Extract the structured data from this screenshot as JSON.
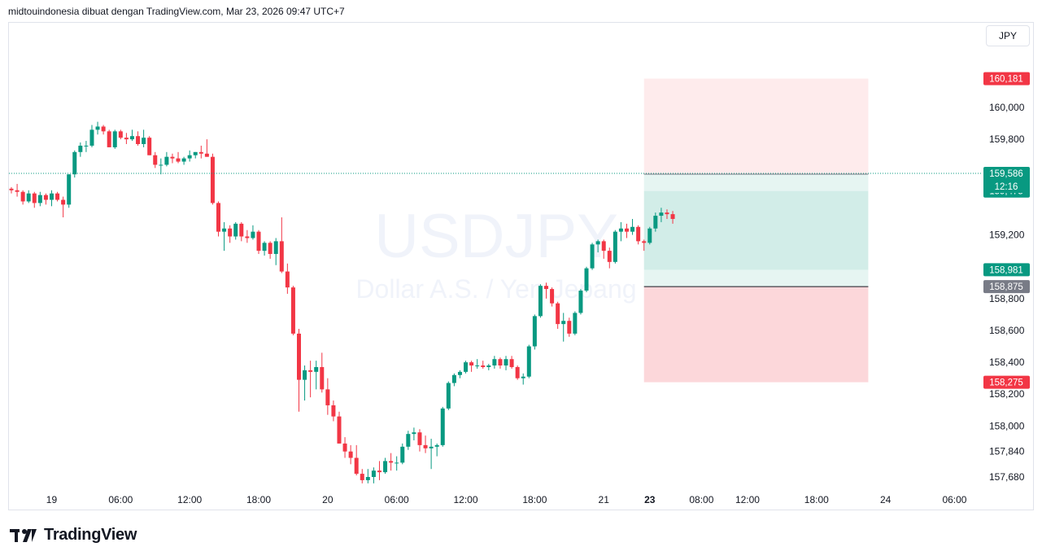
{
  "header": {
    "text": "midtouindonesia dibuat dengan TradingView.com, Mar 23, 2026 09:47 UTC+7"
  },
  "currency_badge": "JPY",
  "footer": {
    "brand": "TradingView"
  },
  "colors": {
    "up": "#089981",
    "down": "#f23645",
    "grid": "#e0e3eb",
    "text": "#131722",
    "watermark": "#f0f3fa",
    "profit_zone": "rgba(8,153,129,0.18)",
    "profit_zone_light": "rgba(8,153,129,0.10)",
    "loss_zone": "rgba(242,54,69,0.20)",
    "loss_zone_light": "rgba(242,54,69,0.10)",
    "price_line": "#089981",
    "entry_gray": "#787b86"
  },
  "chart_data": {
    "type": "candlestick",
    "symbol_watermark": "USDJPY",
    "subtitle_watermark": "Dollar A.S. / Yen Jepang",
    "y_range": [
      157580,
      160390
    ],
    "y_ticks": [
      "160,000",
      "159,800",
      "159,200",
      "158,800",
      "158,600",
      "158,400",
      "158,200",
      "158,000",
      "157,840",
      "157,680"
    ],
    "y_tick_values": [
      160000,
      159800,
      159200,
      158800,
      158600,
      158400,
      158200,
      158000,
      157840,
      157680
    ],
    "x_ticks": [
      "19",
      "06:00",
      "12:00",
      "18:00",
      "20",
      "06:00",
      "12:00",
      "18:00",
      "21",
      "23",
      "08:00",
      "12:00",
      "18:00",
      "24",
      "06:00"
    ],
    "x_tick_bold": [
      false,
      false,
      false,
      false,
      false,
      false,
      false,
      false,
      false,
      true,
      false,
      false,
      false,
      false,
      false
    ],
    "x_tick_bar_index": [
      7,
      19,
      31,
      43,
      55,
      67,
      79,
      91,
      103,
      111,
      120,
      128,
      140,
      152,
      164
    ],
    "x_tick_time": [
      "19",
      "06:00",
      "12:00",
      "18:00",
      "20",
      "06:00",
      "12:00",
      "18:00",
      "21",
      "23",
      "08:00",
      "12:00",
      "18:00",
      "24",
      "06:00"
    ],
    "bar_interval": "30m",
    "current_price": {
      "value": 159586,
      "label": "159,586",
      "countdown": "12:16"
    },
    "position": {
      "type": "long",
      "start_bar": 110,
      "end_bar": 149,
      "take_profit": {
        "value": 160181,
        "label": "160,181"
      },
      "entry": {
        "value": 159581,
        "label": "159,581"
      },
      "stop_loss": {
        "value": 158875,
        "label": "158,875"
      },
      "stop_loss_far": {
        "value": 158275,
        "label": "158,275"
      },
      "tp_near": {
        "value": 158981,
        "label": "158,981"
      },
      "level_475": {
        "value": 159475,
        "label": "159,475"
      }
    },
    "candles": [
      [
        159490,
        159500,
        159460,
        159480
      ],
      [
        159480,
        159520,
        159440,
        159470
      ],
      [
        159470,
        159480,
        159390,
        159410
      ],
      [
        159410,
        159480,
        159400,
        159460
      ],
      [
        159460,
        159470,
        159370,
        159400
      ],
      [
        159400,
        159470,
        159380,
        159450
      ],
      [
        159450,
        159460,
        159390,
        159420
      ],
      [
        159420,
        159480,
        159380,
        159460
      ],
      [
        159460,
        159470,
        159410,
        159420
      ],
      [
        159420,
        159440,
        159310,
        159390
      ],
      [
        159390,
        159580,
        159370,
        159580
      ],
      [
        159580,
        159730,
        159560,
        159720
      ],
      [
        159720,
        159780,
        159690,
        159760
      ],
      [
        159760,
        159790,
        159720,
        159760
      ],
      [
        159760,
        159890,
        159750,
        159860
      ],
      [
        159860,
        159910,
        159830,
        159880
      ],
      [
        159880,
        159890,
        159830,
        159850
      ],
      [
        159850,
        159860,
        159750,
        159750
      ],
      [
        159750,
        159860,
        159740,
        159850
      ],
      [
        159850,
        159860,
        159800,
        159810
      ],
      [
        159810,
        159840,
        159770,
        159800
      ],
      [
        159800,
        159860,
        159790,
        159820
      ],
      [
        159820,
        159850,
        159760,
        159770
      ],
      [
        159770,
        159860,
        159750,
        159810
      ],
      [
        159810,
        159820,
        159700,
        159700
      ],
      [
        159700,
        159720,
        159620,
        159640
      ],
      [
        159640,
        159680,
        159580,
        159640
      ],
      [
        159640,
        159720,
        159630,
        159690
      ],
      [
        159690,
        159710,
        159650,
        159680
      ],
      [
        159680,
        159720,
        159650,
        159660
      ],
      [
        159660,
        159690,
        159640,
        159680
      ],
      [
        159680,
        159730,
        159660,
        159700
      ],
      [
        159700,
        159720,
        159680,
        159720
      ],
      [
        159720,
        159760,
        159680,
        159710
      ],
      [
        159710,
        159800,
        159690,
        159690
      ],
      [
        159690,
        159710,
        159390,
        159400
      ],
      [
        159400,
        159410,
        159190,
        159220
      ],
      [
        159220,
        159280,
        159100,
        159240
      ],
      [
        159240,
        159260,
        159150,
        159190
      ],
      [
        159190,
        159280,
        159170,
        159270
      ],
      [
        159270,
        159280,
        159160,
        159190
      ],
      [
        159190,
        159230,
        159150,
        159180
      ],
      [
        159180,
        159260,
        159170,
        159220
      ],
      [
        159220,
        159230,
        159080,
        159100
      ],
      [
        159100,
        159160,
        159070,
        159150
      ],
      [
        159150,
        159160,
        159050,
        159080
      ],
      [
        159080,
        159180,
        159010,
        159160
      ],
      [
        159160,
        159310,
        158960,
        158970
      ],
      [
        158970,
        159020,
        158830,
        158870
      ],
      [
        158870,
        158880,
        158570,
        158580
      ],
      [
        158580,
        158610,
        158090,
        158290
      ],
      [
        158290,
        158380,
        158160,
        158350
      ],
      [
        158350,
        158410,
        158180,
        158340
      ],
      [
        158340,
        158410,
        158230,
        158370
      ],
      [
        158370,
        158460,
        158210,
        158230
      ],
      [
        158230,
        158300,
        158070,
        158130
      ],
      [
        158130,
        158160,
        158030,
        158060
      ],
      [
        158060,
        158090,
        157890,
        157890
      ],
      [
        157890,
        157930,
        157800,
        157840
      ],
      [
        157840,
        157880,
        157760,
        157800
      ],
      [
        157800,
        157880,
        157690,
        157700
      ],
      [
        157700,
        157730,
        157640,
        157660
      ],
      [
        157660,
        157730,
        157640,
        157680
      ],
      [
        157680,
        157740,
        157640,
        157720
      ],
      [
        157720,
        157780,
        157660,
        157710
      ],
      [
        157710,
        157800,
        157700,
        157780
      ],
      [
        157780,
        157830,
        157720,
        157770
      ],
      [
        157770,
        157810,
        157720,
        157770
      ],
      [
        157770,
        157890,
        157760,
        157870
      ],
      [
        157870,
        157970,
        157850,
        157950
      ],
      [
        157950,
        157990,
        157910,
        157960
      ],
      [
        157960,
        157980,
        157840,
        157880
      ],
      [
        157880,
        157940,
        157830,
        157860
      ],
      [
        157860,
        157920,
        157730,
        157870
      ],
      [
        157870,
        157890,
        157810,
        157880
      ],
      [
        157880,
        158120,
        157870,
        158110
      ],
      [
        158110,
        158280,
        158100,
        158270
      ],
      [
        158270,
        158330,
        158250,
        158320
      ],
      [
        158320,
        158350,
        158300,
        158340
      ],
      [
        158340,
        158410,
        158330,
        158400
      ],
      [
        158400,
        158410,
        158340,
        158380
      ],
      [
        158380,
        158420,
        158360,
        158380
      ],
      [
        158380,
        158410,
        158360,
        158370
      ],
      [
        158370,
        158390,
        158350,
        158380
      ],
      [
        158380,
        158440,
        158360,
        158420
      ],
      [
        158420,
        158430,
        158360,
        158380
      ],
      [
        158380,
        158440,
        158350,
        158420
      ],
      [
        158420,
        158440,
        158360,
        158370
      ],
      [
        158370,
        158380,
        158290,
        158300
      ],
      [
        158300,
        158330,
        158260,
        158310
      ],
      [
        158310,
        158510,
        158300,
        158500
      ],
      [
        158500,
        158700,
        158480,
        158690
      ],
      [
        158690,
        158890,
        158680,
        158880
      ],
      [
        158880,
        158900,
        158800,
        158860
      ],
      [
        158860,
        158870,
        158750,
        158770
      ],
      [
        158770,
        158780,
        158610,
        158640
      ],
      [
        158640,
        158710,
        158530,
        158660
      ],
      [
        158660,
        158680,
        158560,
        158580
      ],
      [
        158580,
        158720,
        158570,
        158710
      ],
      [
        158710,
        158860,
        158700,
        158850
      ],
      [
        158850,
        159000,
        158840,
        158990
      ],
      [
        158990,
        159150,
        158980,
        159140
      ],
      [
        159140,
        159170,
        159090,
        159160
      ],
      [
        159160,
        159170,
        159050,
        159100
      ],
      [
        159100,
        159120,
        158990,
        159030
      ],
      [
        159030,
        159230,
        159020,
        159220
      ],
      [
        159220,
        159280,
        159160,
        159240
      ],
      [
        159240,
        159270,
        159180,
        159220
      ],
      [
        159220,
        159300,
        159200,
        159250
      ],
      [
        159250,
        159260,
        159140,
        159160
      ],
      [
        159160,
        159170,
        159100,
        159150
      ],
      [
        159150,
        159250,
        159140,
        159240
      ],
      [
        159240,
        159340,
        159220,
        159320
      ],
      [
        159320,
        159370,
        159280,
        159340
      ],
      [
        159340,
        159360,
        159300,
        159330
      ],
      [
        159330,
        159350,
        159270,
        159300
      ]
    ]
  }
}
